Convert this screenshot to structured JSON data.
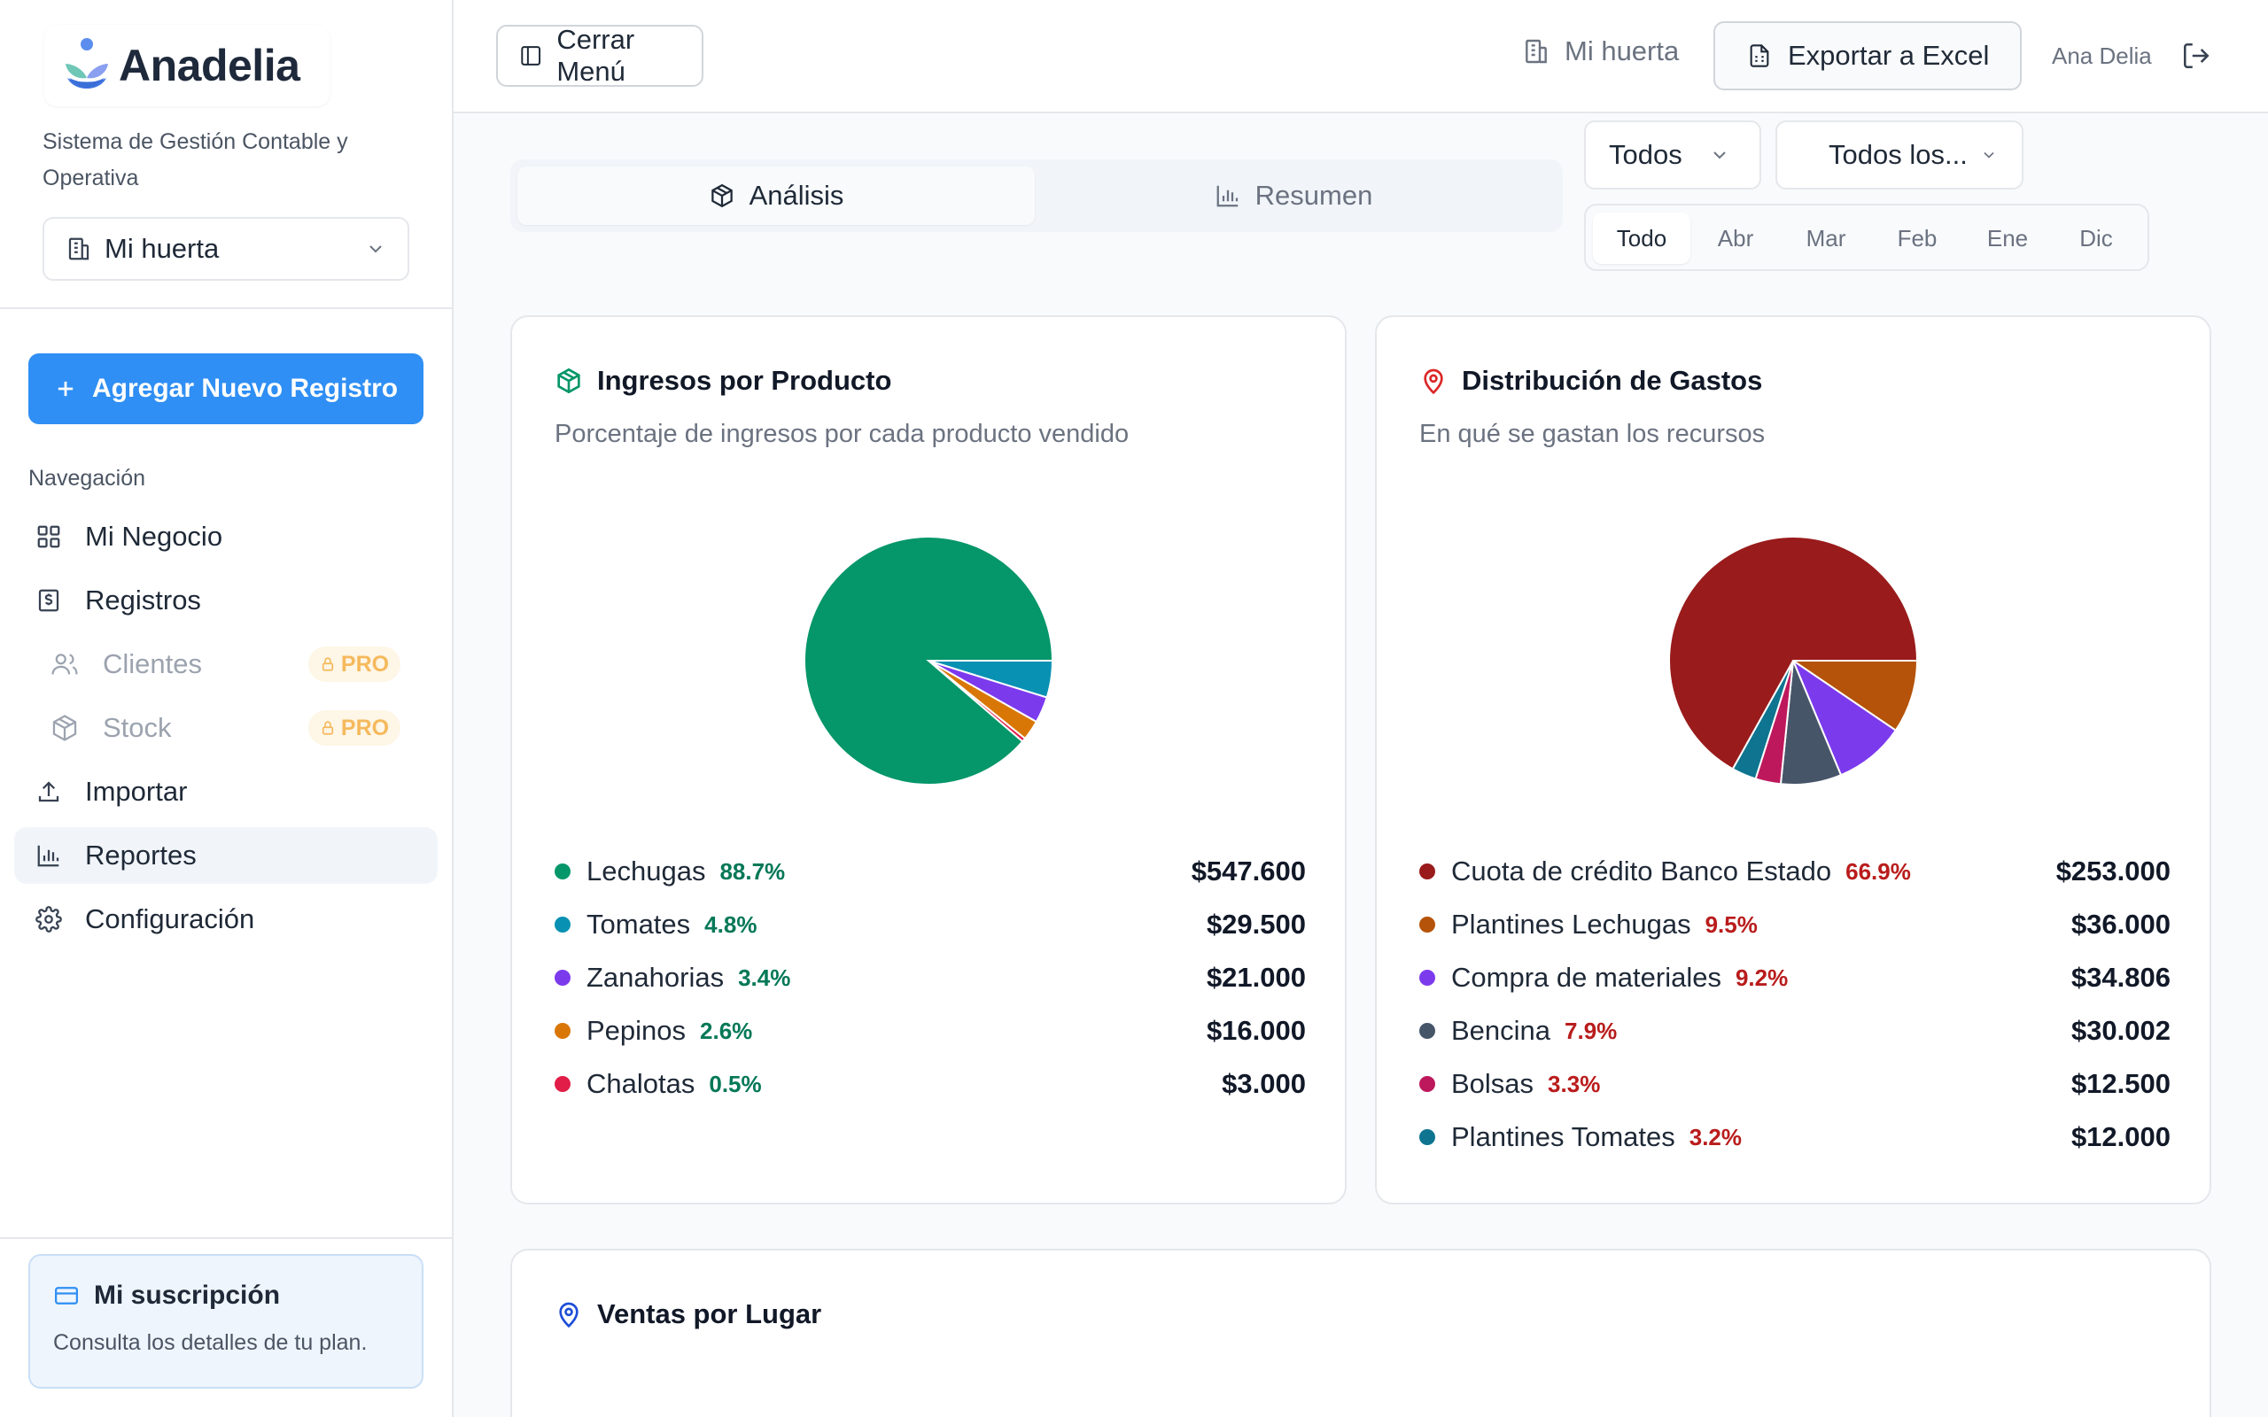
{
  "app": {
    "name": "Anadelia",
    "description": "Sistema de Gestión Contable y Operativa",
    "business_selector": "Mi huerta"
  },
  "sidebar": {
    "add_button": "Agregar Nuevo Registro",
    "nav_label": "Navegación",
    "items": [
      {
        "label": "Mi Negocio",
        "icon": "grid-icon"
      },
      {
        "label": "Registros",
        "icon": "dollar-receipt-icon"
      },
      {
        "label": "Clientes",
        "icon": "users-icon",
        "badge": "PRO"
      },
      {
        "label": "Stock",
        "icon": "box-icon",
        "badge": "PRO"
      },
      {
        "label": "Importar",
        "icon": "upload-icon"
      },
      {
        "label": "Reportes",
        "icon": "bar-chart-icon"
      },
      {
        "label": "Configuración",
        "icon": "gear-icon"
      }
    ],
    "subscription": {
      "title": "Mi suscripción",
      "description": "Consulta los detalles de tu plan."
    }
  },
  "topbar": {
    "close_menu": "Cerrar Menú",
    "business": "Mi huerta",
    "export": "Exportar a Excel",
    "user": "Ana Delia"
  },
  "tabs": [
    {
      "label": "Análisis",
      "active": true
    },
    {
      "label": "Resumen",
      "active": false
    }
  ],
  "filters": {
    "type_select": "Todos",
    "place_select": "Todos los...",
    "months": [
      "Todo",
      "Abr",
      "Mar",
      "Feb",
      "Ene",
      "Dic"
    ],
    "active_month": "Todo"
  },
  "colors": {
    "primary": "#2f8ff4",
    "income_pct": "#047857",
    "expense_pct": "#b91c1c"
  },
  "income_card": {
    "title": "Ingresos por Producto",
    "subtitle": "Porcentaje de ingresos por cada producto vendido",
    "items": [
      {
        "label": "Lechugas",
        "pct": "88.7%",
        "value": "$547.600",
        "color": "#059669"
      },
      {
        "label": "Tomates",
        "pct": "4.8%",
        "value": "$29.500",
        "color": "#0891b2"
      },
      {
        "label": "Zanahorias",
        "pct": "3.4%",
        "value": "$21.000",
        "color": "#7c3aed"
      },
      {
        "label": "Pepinos",
        "pct": "2.6%",
        "value": "$16.000",
        "color": "#d97706"
      },
      {
        "label": "Chalotas",
        "pct": "0.5%",
        "value": "$3.000",
        "color": "#e11d48"
      }
    ]
  },
  "expense_card": {
    "title": "Distribución de Gastos",
    "subtitle": "En qué se gastan los recursos",
    "items": [
      {
        "label": "Cuota de crédito Banco Estado",
        "pct": "66.9%",
        "value": "$253.000",
        "color": "#991b1b"
      },
      {
        "label": "Plantines Lechugas",
        "pct": "9.5%",
        "value": "$36.000",
        "color": "#b45309"
      },
      {
        "label": "Compra de materiales",
        "pct": "9.2%",
        "value": "$34.806",
        "color": "#7c3aed"
      },
      {
        "label": "Bencina",
        "pct": "7.9%",
        "value": "$30.002",
        "color": "#475569"
      },
      {
        "label": "Bolsas",
        "pct": "3.3%",
        "value": "$12.500",
        "color": "#be185d"
      },
      {
        "label": "Plantines Tomates",
        "pct": "3.2%",
        "value": "$12.000",
        "color": "#0e7490"
      }
    ]
  },
  "places_card": {
    "title": "Ventas por Lugar"
  },
  "chart_data": [
    {
      "type": "pie",
      "title": "Ingresos por Producto",
      "categories": [
        "Lechugas",
        "Tomates",
        "Zanahorias",
        "Pepinos",
        "Chalotas"
      ],
      "values": [
        88.7,
        4.8,
        3.4,
        2.6,
        0.5
      ],
      "amounts": [
        547600,
        29500,
        21000,
        16000,
        3000
      ],
      "legend": "bottom"
    },
    {
      "type": "pie",
      "title": "Distribución de Gastos",
      "categories": [
        "Cuota de crédito Banco Estado",
        "Plantines Lechugas",
        "Compra de materiales",
        "Bencina",
        "Bolsas",
        "Plantines Tomates"
      ],
      "values": [
        66.9,
        9.5,
        9.2,
        7.9,
        3.3,
        3.2
      ],
      "amounts": [
        253000,
        36000,
        34806,
        30002,
        12500,
        12000
      ],
      "legend": "bottom"
    }
  ]
}
